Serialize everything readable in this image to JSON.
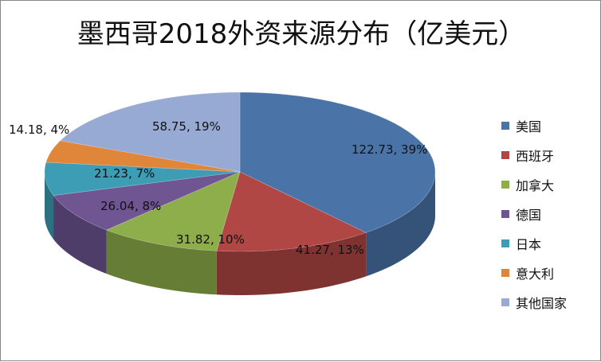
{
  "chart_data": {
    "type": "pie",
    "title": "墨西哥2018外资来源分布（亿美元）",
    "categories": [
      "美国",
      "西班牙",
      "加拿大",
      "德国",
      "日本",
      "意大利",
      "其他国家"
    ],
    "values": [
      122.73,
      41.27,
      31.82,
      26.04,
      21.23,
      14.18,
      58.75
    ],
    "percents": [
      "39%",
      "13%",
      "10%",
      "8%",
      "7%",
      "4%",
      "19%"
    ],
    "data_labels": [
      "122.73, 39%",
      "41.27, 13%",
      "31.82, 10%",
      "26.04, 8%",
      "21.23, 7%",
      "14.18, 4%",
      "58.75, 19%"
    ],
    "colors": [
      "#4a73a8",
      "#b04744",
      "#8eae4c",
      "#6f5592",
      "#3c9db4",
      "#e0863a",
      "#97aad4"
    ],
    "legend_position": "right"
  }
}
